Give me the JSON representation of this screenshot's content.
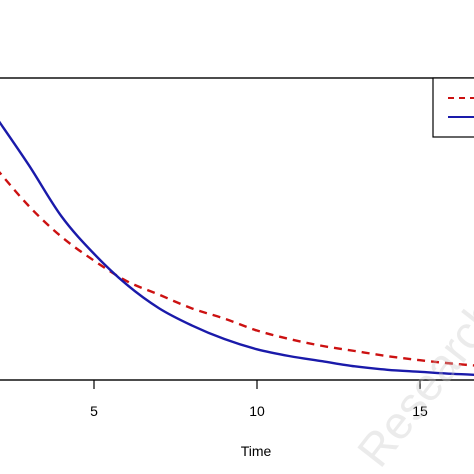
{
  "chart_data": {
    "type": "line",
    "title": "",
    "xlabel": "Time",
    "ylabel": "",
    "xlim": [
      0,
      17
    ],
    "ylim": [
      0,
      1
    ],
    "x_ticks": [
      5,
      10,
      15
    ],
    "x_tick_labels": [
      "5",
      "10",
      "15"
    ],
    "grid": false,
    "legend": {
      "placement": "top-right",
      "entries": [
        "",
        ""
      ]
    },
    "series": [
      {
        "line_style": "dashed",
        "color": "#cc1111",
        "x": [
          2,
          3,
          4,
          5,
          6,
          7,
          8,
          9,
          10,
          11,
          12,
          13,
          14,
          15,
          16,
          17
        ],
        "y": [
          0.62,
          0.51,
          0.42,
          0.35,
          0.29,
          0.25,
          0.21,
          0.18,
          0.145,
          0.12,
          0.1,
          0.085,
          0.07,
          0.058,
          0.048,
          0.04
        ]
      },
      {
        "line_style": "solid",
        "color": "#1a1aaa",
        "x": [
          2,
          3,
          4,
          5,
          6,
          7,
          8,
          9,
          10,
          11,
          12,
          13,
          14,
          15,
          16,
          17
        ],
        "y": [
          0.77,
          0.63,
          0.48,
          0.37,
          0.28,
          0.21,
          0.16,
          0.12,
          0.09,
          0.07,
          0.055,
          0.04,
          0.03,
          0.024,
          0.018,
          0.014
        ]
      }
    ],
    "watermark": "ResearchGate"
  }
}
